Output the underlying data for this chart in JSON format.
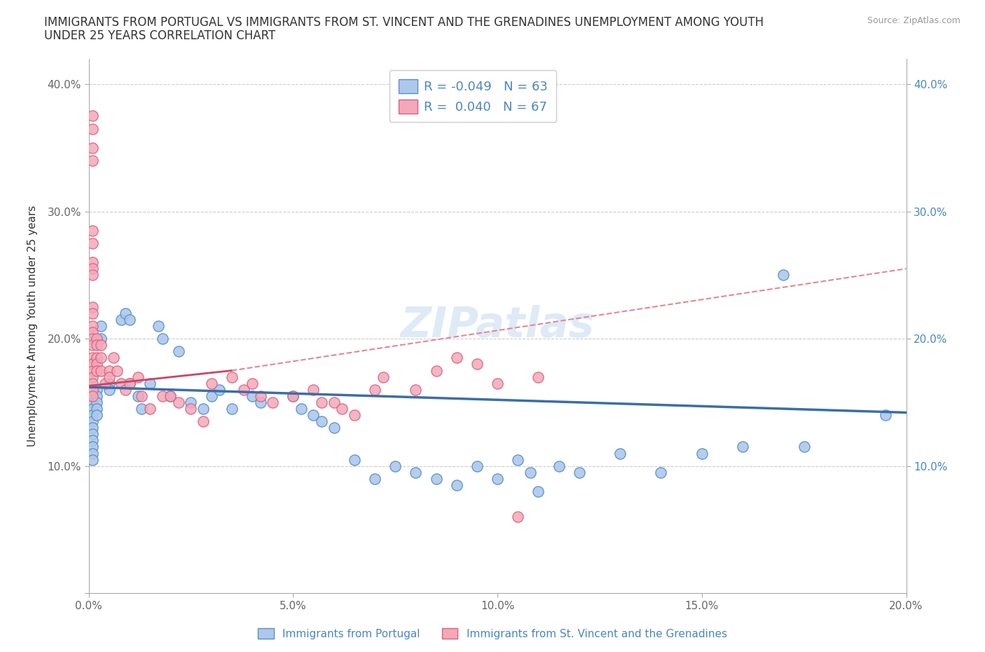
{
  "title_line1": "IMMIGRANTS FROM PORTUGAL VS IMMIGRANTS FROM ST. VINCENT AND THE GRENADINES UNEMPLOYMENT AMONG YOUTH",
  "title_line2": "UNDER 25 YEARS CORRELATION CHART",
  "source": "Source: ZipAtlas.com",
  "ylabel": "Unemployment Among Youth under 25 years",
  "xlim": [
    0.0,
    0.2
  ],
  "ylim": [
    0.0,
    0.42
  ],
  "xticks": [
    0.0,
    0.05,
    0.1,
    0.15,
    0.2
  ],
  "yticks": [
    0.0,
    0.1,
    0.2,
    0.3,
    0.4
  ],
  "xtick_labels": [
    "0.0%",
    "5.0%",
    "10.0%",
    "15.0%",
    "20.0%"
  ],
  "ytick_labels": [
    "",
    "10.0%",
    "20.0%",
    "30.0%",
    "40.0%"
  ],
  "color_portugal": "#adc8ed",
  "color_svg": "#f4a8b8",
  "color_portugal_edge": "#5a8fc4",
  "color_svg_edge": "#d86080",
  "color_portugal_line": "#3a6eaa",
  "color_svg_line": "#cc4466",
  "color_svg_dashed": "#e08898",
  "watermark": "ZIPatlas",
  "legend_label_portugal": "Immigrants from Portugal",
  "legend_label_svincent": "Immigrants from St. Vincent and the Grenadines",
  "portugal_x": [
    0.001,
    0.001,
    0.001,
    0.001,
    0.001,
    0.001,
    0.001,
    0.001,
    0.001,
    0.001,
    0.001,
    0.002,
    0.002,
    0.002,
    0.002,
    0.002,
    0.003,
    0.003,
    0.005,
    0.005,
    0.008,
    0.009,
    0.01,
    0.01,
    0.012,
    0.013,
    0.015,
    0.017,
    0.018,
    0.02,
    0.022,
    0.025,
    0.028,
    0.03,
    0.032,
    0.035,
    0.04,
    0.042,
    0.05,
    0.052,
    0.055,
    0.057,
    0.06,
    0.065,
    0.07,
    0.075,
    0.08,
    0.085,
    0.09,
    0.095,
    0.1,
    0.105,
    0.108,
    0.11,
    0.115,
    0.12,
    0.13,
    0.14,
    0.15,
    0.16,
    0.17,
    0.175,
    0.195
  ],
  "portugal_y": [
    0.155,
    0.15,
    0.145,
    0.14,
    0.135,
    0.13,
    0.125,
    0.12,
    0.115,
    0.11,
    0.105,
    0.16,
    0.155,
    0.15,
    0.145,
    0.14,
    0.2,
    0.21,
    0.165,
    0.16,
    0.215,
    0.22,
    0.215,
    0.165,
    0.155,
    0.145,
    0.165,
    0.21,
    0.2,
    0.155,
    0.19,
    0.15,
    0.145,
    0.155,
    0.16,
    0.145,
    0.155,
    0.15,
    0.155,
    0.145,
    0.14,
    0.135,
    0.13,
    0.105,
    0.09,
    0.1,
    0.095,
    0.09,
    0.085,
    0.1,
    0.09,
    0.105,
    0.095,
    0.08,
    0.1,
    0.095,
    0.11,
    0.095,
    0.11,
    0.115,
    0.25,
    0.115,
    0.14
  ],
  "svincent_x": [
    0.001,
    0.001,
    0.001,
    0.001,
    0.001,
    0.001,
    0.001,
    0.001,
    0.001,
    0.001,
    0.001,
    0.001,
    0.001,
    0.001,
    0.001,
    0.001,
    0.001,
    0.001,
    0.001,
    0.001,
    0.001,
    0.001,
    0.002,
    0.002,
    0.002,
    0.002,
    0.002,
    0.003,
    0.003,
    0.003,
    0.004,
    0.005,
    0.005,
    0.006,
    0.007,
    0.008,
    0.009,
    0.01,
    0.012,
    0.013,
    0.015,
    0.018,
    0.02,
    0.022,
    0.025,
    0.028,
    0.03,
    0.035,
    0.038,
    0.04,
    0.042,
    0.045,
    0.05,
    0.055,
    0.057,
    0.06,
    0.062,
    0.065,
    0.07,
    0.072,
    0.08,
    0.085,
    0.09,
    0.095,
    0.1,
    0.105,
    0.11
  ],
  "svincent_y": [
    0.375,
    0.365,
    0.35,
    0.34,
    0.285,
    0.275,
    0.26,
    0.255,
    0.25,
    0.225,
    0.22,
    0.21,
    0.205,
    0.2,
    0.195,
    0.185,
    0.18,
    0.175,
    0.17,
    0.165,
    0.16,
    0.155,
    0.2,
    0.195,
    0.185,
    0.18,
    0.175,
    0.195,
    0.185,
    0.175,
    0.165,
    0.175,
    0.17,
    0.185,
    0.175,
    0.165,
    0.16,
    0.165,
    0.17,
    0.155,
    0.145,
    0.155,
    0.155,
    0.15,
    0.145,
    0.135,
    0.165,
    0.17,
    0.16,
    0.165,
    0.155,
    0.15,
    0.155,
    0.16,
    0.15,
    0.15,
    0.145,
    0.14,
    0.16,
    0.17,
    0.16,
    0.175,
    0.185,
    0.18,
    0.165,
    0.06,
    0.17
  ]
}
